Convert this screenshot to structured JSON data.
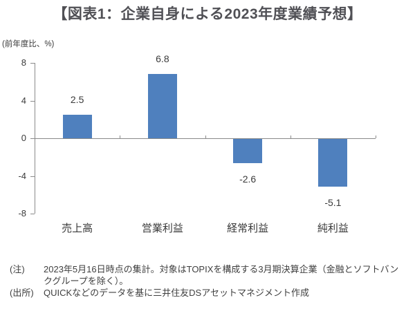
{
  "title": {
    "text": "【図表1：企業自身による2023年度業績予想】"
  },
  "colors": {
    "title": "#505055",
    "bar": "#4f80be",
    "axis": "#8a8a8a",
    "chart_text": "#3a3a3a",
    "note_text": "#3f3f3f"
  },
  "chart_data": {
    "type": "bar",
    "title": "企業自身による2023年度業績予想",
    "unit_label": "(前年度比、%)",
    "categories": [
      "売上高",
      "営業利益",
      "経常利益",
      "純利益"
    ],
    "values": [
      2.5,
      6.8,
      -2.6,
      -5.1
    ],
    "data_labels": [
      "2.5",
      "6.8",
      "-2.6",
      "-5.1"
    ],
    "ylim": [
      -8,
      8
    ],
    "yticks": [
      8,
      4,
      0,
      -4,
      -8
    ],
    "grid": false,
    "legend": false
  },
  "notes": [
    {
      "label": "(注)",
      "lines": [
        "2023年5月16日時点の集計。対象はTOPIXを構成する3月期決算企業（金融とソフトバン",
        "クグループを除く）。"
      ]
    },
    {
      "label": "(出所)",
      "lines": [
        "QUICKなどのデータを基に三井住友DSアセットマネジメント作成"
      ]
    }
  ]
}
